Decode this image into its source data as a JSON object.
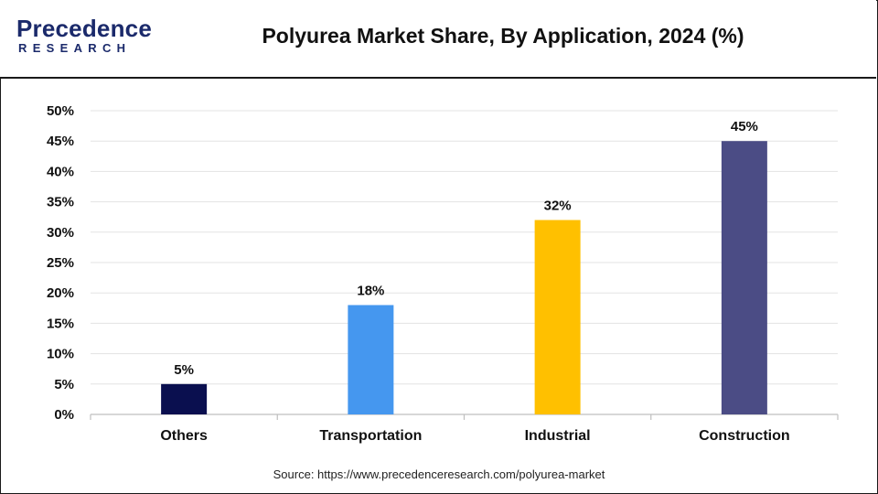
{
  "logo": {
    "word": "Precedence",
    "sub": "RESEARCH",
    "brand_color": "#1b2a6b"
  },
  "title": "Polyurea Market Share, By Application, 2024 (%)",
  "source": "Source: https://www.precedenceresearch.com/polyurea-market",
  "chart_data": {
    "type": "bar",
    "title": "Polyurea Market Share, By Application, 2024 (%)",
    "categories": [
      "Others",
      "Transportation",
      "Industrial",
      "Construction"
    ],
    "values": [
      5,
      18,
      32,
      45
    ],
    "data_labels": [
      "5%",
      "18%",
      "32%",
      "45%"
    ],
    "bar_colors": [
      "#0a0f4f",
      "#4597ef",
      "#ffc000",
      "#4b4c85"
    ],
    "ylim": [
      0,
      50
    ],
    "yticks": [
      0,
      5,
      10,
      15,
      20,
      25,
      30,
      35,
      40,
      45,
      50
    ],
    "ytick_labels": [
      "0%",
      "5%",
      "10%",
      "15%",
      "20%",
      "25%",
      "30%",
      "35%",
      "40%",
      "45%",
      "50%"
    ],
    "xlabel": "",
    "ylabel": "",
    "grid": true,
    "legend": "none"
  }
}
